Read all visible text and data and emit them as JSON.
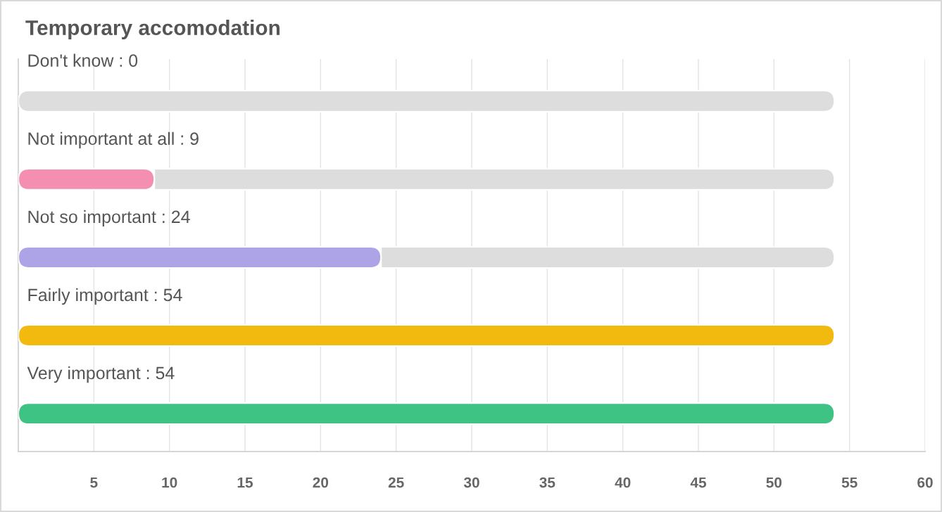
{
  "chart_data": {
    "type": "bar",
    "orientation": "horizontal",
    "stacked": true,
    "title": "Temporary accomodation",
    "categories": [
      "Don't know : 0",
      "Not important at all : 9",
      "Not so important : 24",
      "Fairly important : 54",
      "Very important : 54"
    ],
    "series": [
      {
        "colors": [
          null,
          "#f48fb1",
          "#aca4e6",
          "#f2b90f",
          "#3ec384"
        ],
        "values": [
          0,
          9,
          24,
          54,
          54
        ]
      },
      {
        "color": "#dddddd",
        "values": [
          54,
          45,
          30,
          0,
          0
        ]
      }
    ],
    "xlim": [
      0,
      60
    ],
    "xticks": [
      5,
      10,
      15,
      20,
      25,
      30,
      35,
      40,
      45,
      50,
      55,
      60
    ],
    "grid": "x"
  }
}
